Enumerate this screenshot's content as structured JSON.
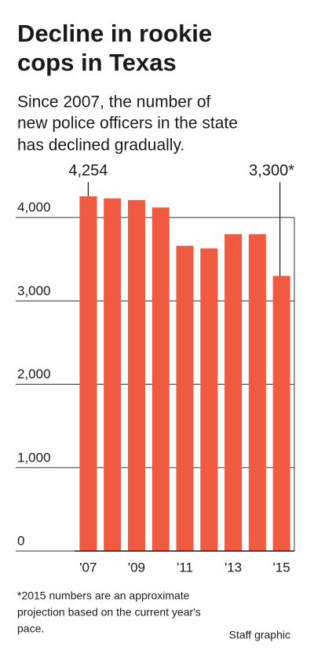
{
  "chart_data": {
    "type": "bar",
    "title": [
      "Decline in rookie",
      "cops in Texas"
    ],
    "subtitle": [
      "Since 2007, the number of",
      "new police officers in the state",
      "has declined gradually."
    ],
    "categories": [
      "'07",
      null,
      "'09",
      null,
      "'11",
      null,
      "'13",
      null,
      "'15"
    ],
    "values": [
      4254,
      4230,
      4210,
      4120,
      3660,
      3630,
      3800,
      3800,
      3300
    ],
    "value_labels": [
      "4,254",
      null,
      null,
      null,
      null,
      null,
      null,
      null,
      "3,300*"
    ],
    "color": "#ef5a40",
    "ylim": [
      0,
      4500
    ],
    "yticks": [
      0,
      {
        "value": 1000,
        "label": "1,000"
      },
      {
        "value": 2000,
        "label": "2,000"
      },
      {
        "value": 3000,
        "label": "3,000"
      },
      {
        "value": 4000,
        "label": "4,000"
      }
    ],
    "grid": true,
    "footnote": [
      "*2015 numbers are an approximate",
      "projection based on the current year's",
      "pace."
    ],
    "credit": "Staff graphic"
  }
}
